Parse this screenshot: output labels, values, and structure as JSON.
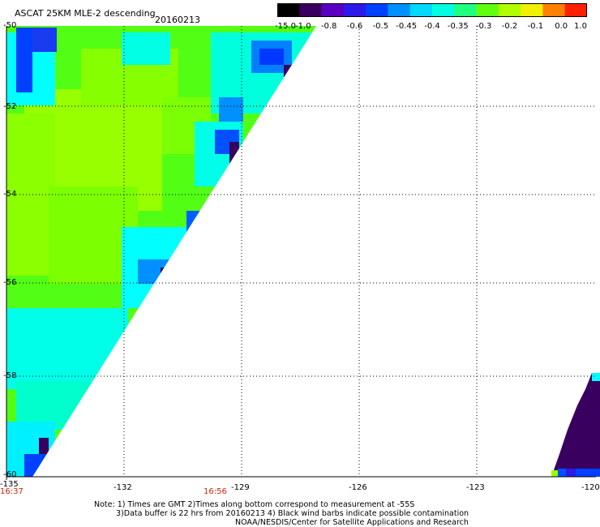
{
  "header": {
    "title": "ASCAT 25KM MLE-2 descending",
    "date": "20160213"
  },
  "colorbar": {
    "labels": [
      "-15.0",
      "-1.0",
      "-0.8",
      "-0.6",
      "-0.5",
      "-0.45",
      "-0.4",
      "-0.35",
      "-0.3",
      "-0.2",
      "-0.1",
      "0.0",
      "1.0"
    ],
    "colors": [
      "#000000",
      "#3a0060",
      "#5a00c0",
      "#2d1ae8",
      "#0040ff",
      "#0090ff",
      "#00d8ff",
      "#00ffe0",
      "#20ff80",
      "#60ff10",
      "#b0ff00",
      "#f0f000",
      "#ff8000",
      "#ff2000"
    ]
  },
  "axes": {
    "lon_ticks": [
      "-135",
      "-132",
      "-129",
      "-126",
      "-123",
      "-120"
    ],
    "lat_ticks": [
      "-50",
      "-52",
      "-54",
      "-56",
      "-58",
      "-60"
    ],
    "grid": "dotted"
  },
  "times": {
    "left": "16:37",
    "mid": "16:56"
  },
  "notes": {
    "line1": "Note: 1) Times are GMT 2)Times along bottom correspond to measurement at -55S",
    "line2": "3)Data buffer is 22 hrs from 20160213 4) Black wind barbs indicate possible contamination",
    "line3": "NOAA/NESDIS/Center for Satellite Applications and Research"
  }
}
